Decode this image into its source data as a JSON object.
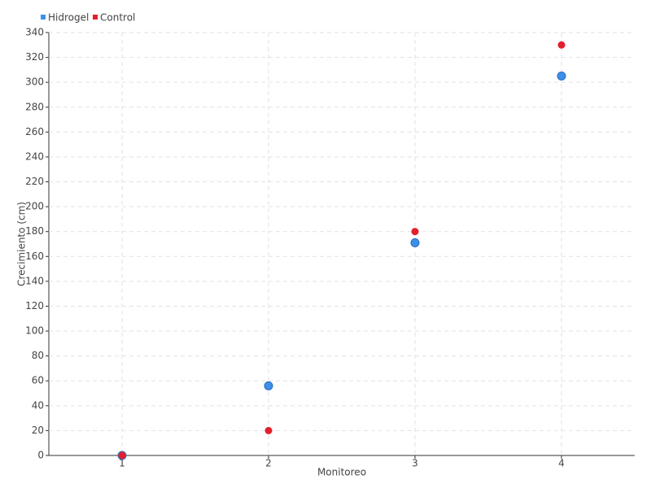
{
  "chart_data": {
    "type": "line",
    "x_label": "Monitoreo",
    "y_label": "Crecimiento (cm)",
    "categories": [
      "1",
      "2",
      "3",
      "4"
    ],
    "series": [
      {
        "name": "Hidrogel",
        "color": "#3d8fe8",
        "values": [
          0,
          56,
          171,
          305
        ]
      },
      {
        "name": "Control",
        "color": "#e3202b",
        "values": [
          0,
          20,
          180,
          330
        ]
      }
    ],
    "ylim": [
      0,
      340
    ],
    "yticks": [
      0,
      20,
      40,
      60,
      80,
      100,
      120,
      140,
      160,
      180,
      200,
      220,
      240,
      260,
      280,
      300,
      320,
      340
    ],
    "grid": true,
    "legend": "top-left"
  }
}
